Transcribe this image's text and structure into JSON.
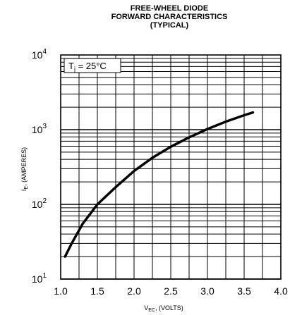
{
  "chart_data": {
    "type": "line",
    "title_lines": [
      "FREE-WHEEL DIODE",
      "FORWARD CHARACTERISTICS",
      "(TYPICAL)"
    ],
    "xlabel": {
      "main": "V",
      "sub": "EC",
      "rest": ", (VOLTS)"
    },
    "ylabel": {
      "main": "I",
      "sub": "E",
      "rest": ", (AMPERES)"
    },
    "xlim": [
      1.0,
      4.0
    ],
    "ylim": [
      10,
      10000
    ],
    "yscale": "log",
    "grid": true,
    "x_ticks": [
      "1.0",
      "1.5",
      "2.0",
      "2.5",
      "3.0",
      "3.5",
      "4.0"
    ],
    "y_ticks": [
      {
        "base": "10",
        "exp": "1"
      },
      {
        "base": "10",
        "exp": "2"
      },
      {
        "base": "10",
        "exp": "3"
      },
      {
        "base": "10",
        "exp": "4"
      }
    ],
    "annotation": {
      "main": "T",
      "sub": "j",
      "rest": " = 25°C"
    },
    "series": [
      {
        "x": [
          1.06,
          1.15,
          1.3,
          1.5,
          1.75,
          2.0,
          2.25,
          2.5,
          2.75,
          3.0,
          3.25,
          3.5,
          3.62
        ],
        "y": [
          20,
          30,
          55,
          100,
          170,
          280,
          420,
          590,
          790,
          1020,
          1280,
          1560,
          1700
        ]
      }
    ],
    "line_color": "#000000"
  }
}
